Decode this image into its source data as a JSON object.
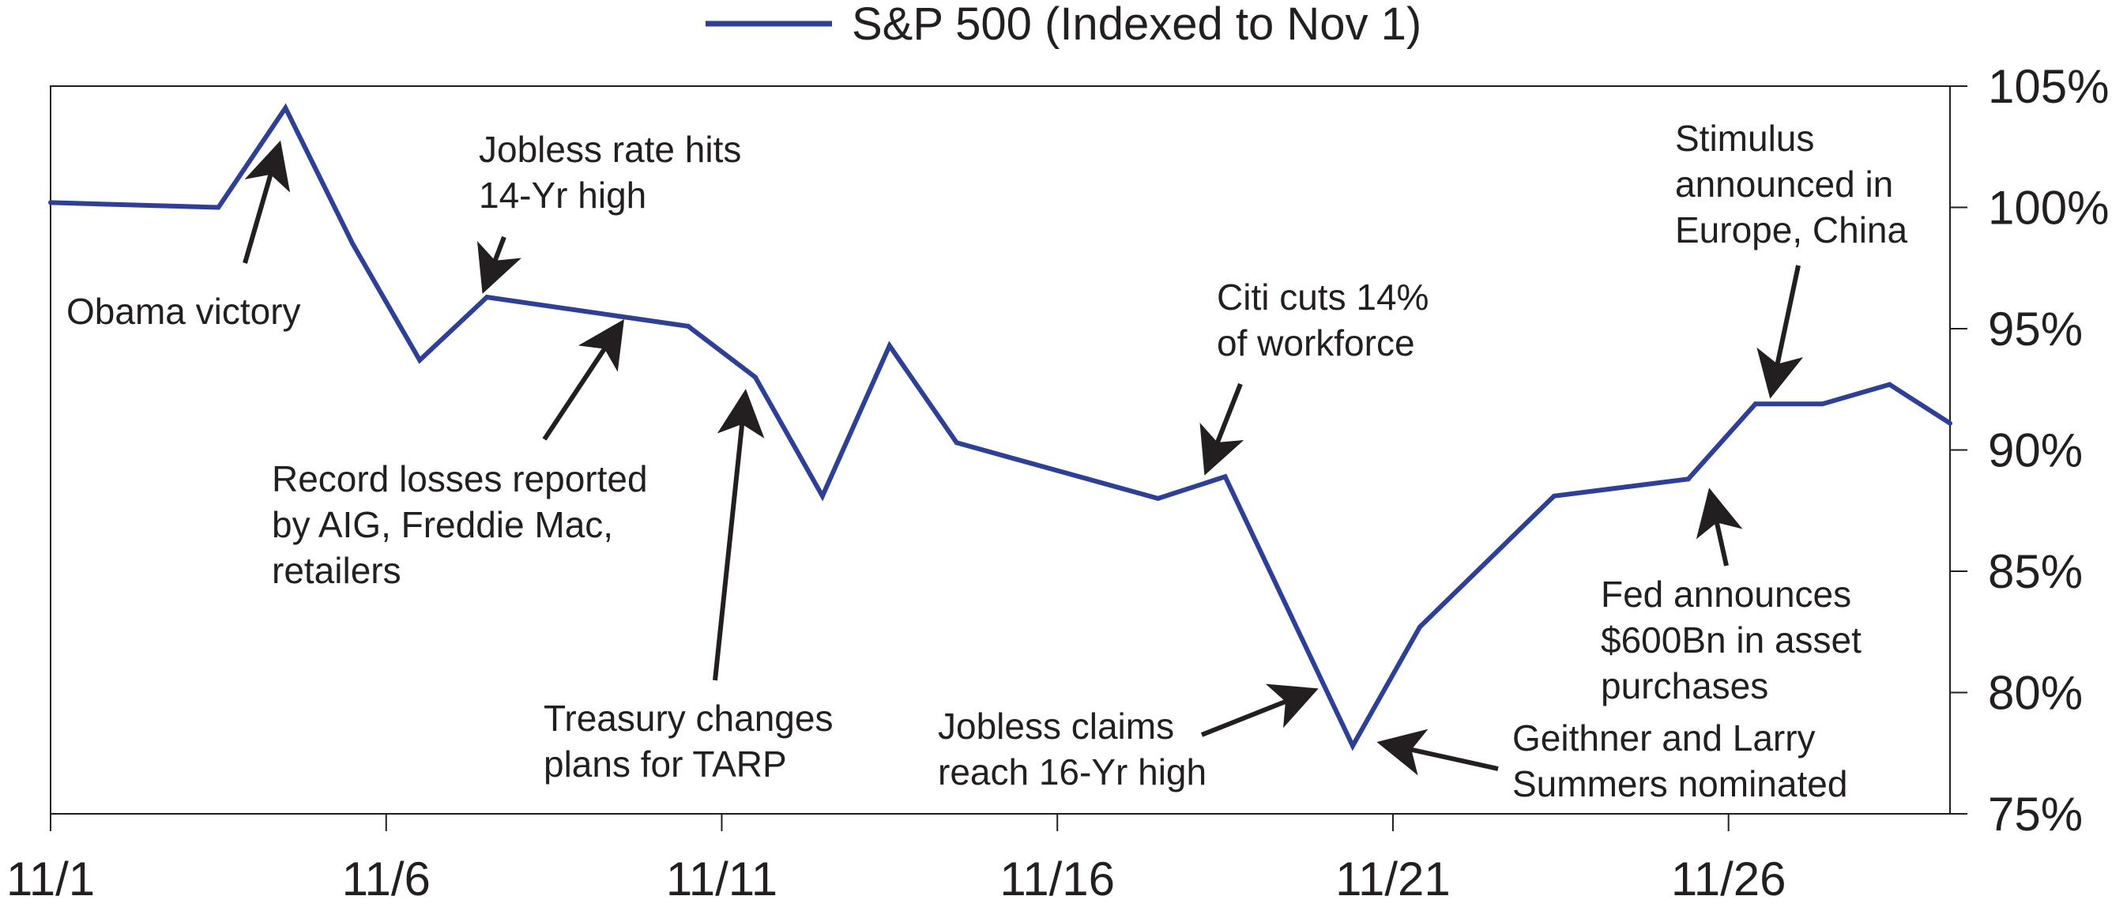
{
  "chart_data": {
    "type": "line",
    "title": "",
    "xlabel": "",
    "ylabel": "",
    "x_tick_labels": [
      "11/1",
      "11/6",
      "11/11",
      "11/16",
      "11/21",
      "11/26"
    ],
    "y_tick_labels": [
      "105%",
      "100%",
      "95%",
      "90%",
      "85%",
      "80%",
      "75%"
    ],
    "ylim": [
      75,
      105
    ],
    "xlim": [
      1,
      29.3
    ],
    "y_axis_side": "right",
    "grid": false,
    "legend_position": "top-center",
    "series": [
      {
        "name": "S&P 500 (Indexed to Nov 1)",
        "color": "#2e3f98",
        "x": [
          1,
          3.5,
          4.5,
          5.5,
          6.5,
          7.5,
          9.5,
          10.5,
          11.5,
          12.5,
          13.5,
          14.5,
          17.5,
          18.5,
          20.4,
          21.4,
          23.4,
          25.4,
          26.4,
          27.4,
          28.4,
          29.3
        ],
        "y": [
          100.2,
          100.0,
          104.1,
          98.5,
          93.7,
          96.3,
          95.5,
          95.1,
          93.0,
          88.1,
          94.3,
          90.3,
          88.0,
          88.9,
          77.8,
          82.7,
          88.1,
          88.8,
          91.9,
          91.9,
          92.7,
          91.1
        ]
      }
    ],
    "annotations": [
      {
        "id": "obama",
        "lines": [
          "Obama victory"
        ],
        "x": 4.5,
        "y": 104.1
      },
      {
        "id": "jobless-rate",
        "lines": [
          "Jobless rate hits",
          "14-Yr high"
        ],
        "x": 7.5,
        "y": 96.3
      },
      {
        "id": "record-losses",
        "lines": [
          "Record losses reported",
          "by AIG, Freddie Mac,",
          "retailers"
        ],
        "x": 9.5,
        "y": 95.5
      },
      {
        "id": "treasury",
        "lines": [
          "Treasury changes",
          "plans for TARP"
        ],
        "x": 11.5,
        "y": 93.0
      },
      {
        "id": "citi",
        "lines": [
          "Citi cuts 14%",
          "of workforce"
        ],
        "x": 18.5,
        "y": 88.9
      },
      {
        "id": "jobless-claims",
        "lines": [
          "Jobless claims",
          "reach 16-Yr high"
        ],
        "x": 20.4,
        "y": 77.8
      },
      {
        "id": "geithner",
        "lines": [
          "Geithner and Larry",
          "Summers nominated"
        ],
        "x": 20.4,
        "y": 77.8
      },
      {
        "id": "fed",
        "lines": [
          "Fed announces",
          "$600Bn in asset",
          "purchases"
        ],
        "x": 25.4,
        "y": 88.8
      },
      {
        "id": "stimulus",
        "lines": [
          "Stimulus",
          "announced in",
          "Europe, China"
        ],
        "x": 26.4,
        "y": 91.9
      }
    ]
  }
}
